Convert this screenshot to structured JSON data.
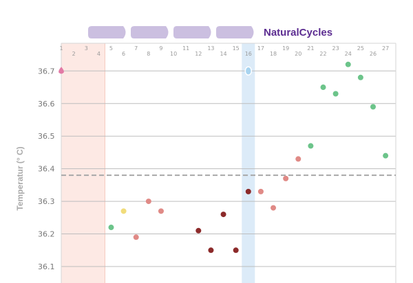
{
  "brand": {
    "name": "NaturalCycles",
    "color": "#5c2d91"
  },
  "colors": {
    "grid": "#bdbdbd",
    "coverline": "#a8a8a8",
    "period_band": "#fde9e4",
    "ovulation_band": "#dcebf8",
    "phase_pill": "#cbbfe0",
    "green": "#6cc48a",
    "yellow": "#f1dc7a",
    "pink": "#e08a86",
    "darkred": "#8c2a2a",
    "period_marker": "#e27aa5",
    "ovulation_marker": "#a8d4f0"
  },
  "chart_data": {
    "type": "scatter",
    "ylabel": "Temperatur (° C)",
    "x_ticks": [
      "1",
      "2",
      "3",
      "4",
      "5",
      "6",
      "7",
      "8",
      "9",
      "10",
      "11",
      "12",
      "13",
      "14",
      "15",
      "16",
      "17",
      "18",
      "19",
      "20",
      "21",
      "22",
      "23",
      "24",
      "25",
      "26",
      "27"
    ],
    "y_ticks": [
      "36.1",
      "36.2",
      "36.3",
      "36.4",
      "36.5",
      "36.6",
      "36.7"
    ],
    "ylim": [
      36.06,
      36.82
    ],
    "xlim": [
      1,
      27.6
    ],
    "coverline": 36.38,
    "period_days": [
      1,
      4.5
    ],
    "ovulation_day": 16,
    "points": [
      {
        "day": 5,
        "temp": 36.22,
        "color": "green"
      },
      {
        "day": 6,
        "temp": 36.27,
        "color": "yellow"
      },
      {
        "day": 7,
        "temp": 36.19,
        "color": "pink"
      },
      {
        "day": 8,
        "temp": 36.3,
        "color": "pink"
      },
      {
        "day": 9,
        "temp": 36.27,
        "color": "pink"
      },
      {
        "day": 12,
        "temp": 36.21,
        "color": "darkred"
      },
      {
        "day": 13,
        "temp": 36.15,
        "color": "darkred"
      },
      {
        "day": 14,
        "temp": 36.26,
        "color": "darkred"
      },
      {
        "day": 15,
        "temp": 36.15,
        "color": "darkred"
      },
      {
        "day": 16,
        "temp": 36.33,
        "color": "darkred"
      },
      {
        "day": 17,
        "temp": 36.33,
        "color": "pink"
      },
      {
        "day": 18,
        "temp": 36.28,
        "color": "pink"
      },
      {
        "day": 19,
        "temp": 36.37,
        "color": "pink"
      },
      {
        "day": 20,
        "temp": 36.43,
        "color": "pink"
      },
      {
        "day": 21,
        "temp": 36.47,
        "color": "green"
      },
      {
        "day": 22,
        "temp": 36.65,
        "color": "green"
      },
      {
        "day": 23,
        "temp": 36.63,
        "color": "green"
      },
      {
        "day": 24,
        "temp": 36.72,
        "color": "green"
      },
      {
        "day": 25,
        "temp": 36.68,
        "color": "green"
      },
      {
        "day": 26,
        "temp": 36.59,
        "color": "green"
      },
      {
        "day": 27,
        "temp": 36.44,
        "color": "green"
      }
    ],
    "markers": [
      {
        "day": 1,
        "temp": 36.7,
        "kind": "period_marker"
      },
      {
        "day": 16,
        "temp": 36.7,
        "kind": "ovulation_marker"
      }
    ],
    "phases": 4,
    "grid": true,
    "legend": "none"
  }
}
